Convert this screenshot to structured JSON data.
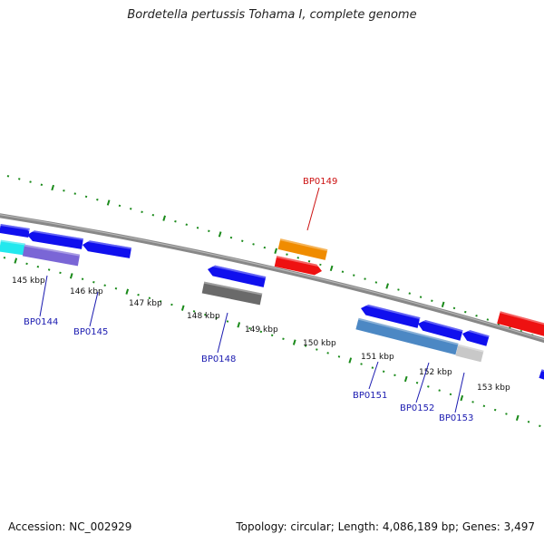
{
  "title": "Bordetella pertussis Tohama I, complete genome",
  "footer": {
    "accession": "Accession: NC_002929",
    "stats": "Topology: circular; Length: 4,086,189 bp; Genes: 3,497"
  },
  "ruler_labels": [
    "145 kbp",
    "146 kbp",
    "147 kbp",
    "148 kbp",
    "149 kbp",
    "150 kbp",
    "151 kbp",
    "152 kbp",
    "153 kbp"
  ],
  "colors": {
    "backbone": "#888888",
    "tick": "#1a8a1a",
    "blue": "#1010ee",
    "cyan": "#22e8ee",
    "purple": "#7a66d6",
    "steel": "#4c88c4",
    "gray": "#6a6a6a",
    "lightgray": "#c8c8c8",
    "orange": "#f08c00",
    "red": "#ee1111",
    "label_blue": "#1a1ab0",
    "label_red": "#cc1111"
  },
  "gene_labels": [
    {
      "name": "BP0144",
      "color": "label_blue"
    },
    {
      "name": "BP0145",
      "color": "label_blue"
    },
    {
      "name": "BP0148",
      "color": "label_blue"
    },
    {
      "name": "BP0149",
      "color": "label_red"
    },
    {
      "name": "BP0151",
      "color": "label_blue"
    },
    {
      "name": "BP0152",
      "color": "label_blue"
    },
    {
      "name": "BP0153",
      "color": "label_blue"
    }
  ]
}
